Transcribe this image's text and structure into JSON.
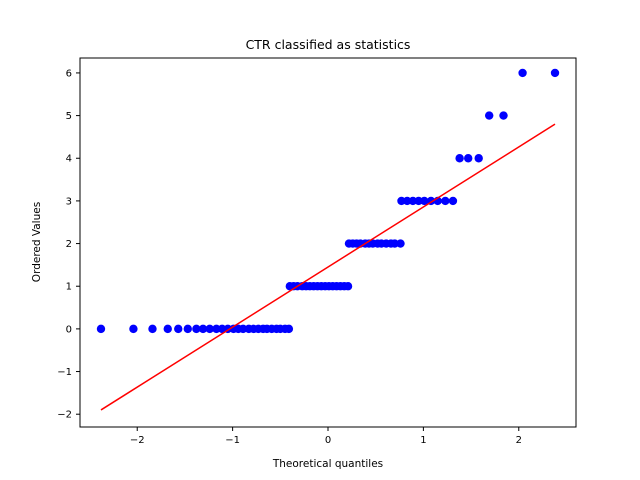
{
  "chart_data": {
    "type": "scatter",
    "title": "CTR classified as statistics",
    "xlabel": "Theoretical quantiles",
    "ylabel": "Ordered Values",
    "xlim": [
      -2.6,
      2.6
    ],
    "ylim": [
      -2.3,
      6.35
    ],
    "xticks": [
      -2,
      -1,
      0,
      1,
      2
    ],
    "yticks": [
      -2,
      -1,
      0,
      1,
      2,
      3,
      4,
      5,
      6
    ],
    "grid": false,
    "colors": {
      "points": "#0000ff",
      "fit_line": "#ff0000"
    },
    "series": [
      {
        "kind": "points",
        "x": [
          -2.38,
          -2.04,
          -1.84,
          -1.68,
          -1.57,
          -1.47,
          -1.38,
          -1.31,
          -1.24,
          -1.17,
          -1.11,
          -1.05,
          -0.99,
          -0.94,
          -0.89,
          -0.83,
          -0.78,
          -0.73,
          -0.68,
          -0.64,
          -0.59,
          -0.54,
          -0.5,
          -0.45,
          -0.41,
          -0.4,
          -0.36,
          -0.32,
          -0.27,
          -0.23,
          -0.19,
          -0.15,
          -0.11,
          -0.07,
          -0.03,
          0.01,
          0.05,
          0.09,
          0.13,
          0.17,
          0.21,
          0.22,
          0.26,
          0.3,
          0.34,
          0.39,
          0.43,
          0.47,
          0.52,
          0.56,
          0.61,
          0.66,
          0.7,
          0.76,
          0.77,
          0.83,
          0.89,
          0.95,
          1.01,
          1.08,
          1.15,
          1.23,
          1.31,
          1.38,
          1.47,
          1.58,
          1.69,
          1.84,
          2.04,
          2.38
        ],
        "y": [
          0,
          0,
          0,
          0,
          0,
          0,
          0,
          0,
          0,
          0,
          0,
          0,
          0,
          0,
          0,
          0,
          0,
          0,
          0,
          0,
          0,
          0,
          0,
          0,
          0,
          1,
          1,
          1,
          1,
          1,
          1,
          1,
          1,
          1,
          1,
          1,
          1,
          1,
          1,
          1,
          1,
          2,
          2,
          2,
          2,
          2,
          2,
          2,
          2,
          2,
          2,
          2,
          2,
          2,
          3,
          3,
          3,
          3,
          3,
          3,
          3,
          3,
          3,
          4,
          4,
          4,
          5,
          5,
          6,
          6
        ]
      },
      {
        "kind": "fit_line",
        "x": [
          -2.38,
          2.38
        ],
        "y": [
          -1.9,
          4.8
        ]
      }
    ]
  }
}
